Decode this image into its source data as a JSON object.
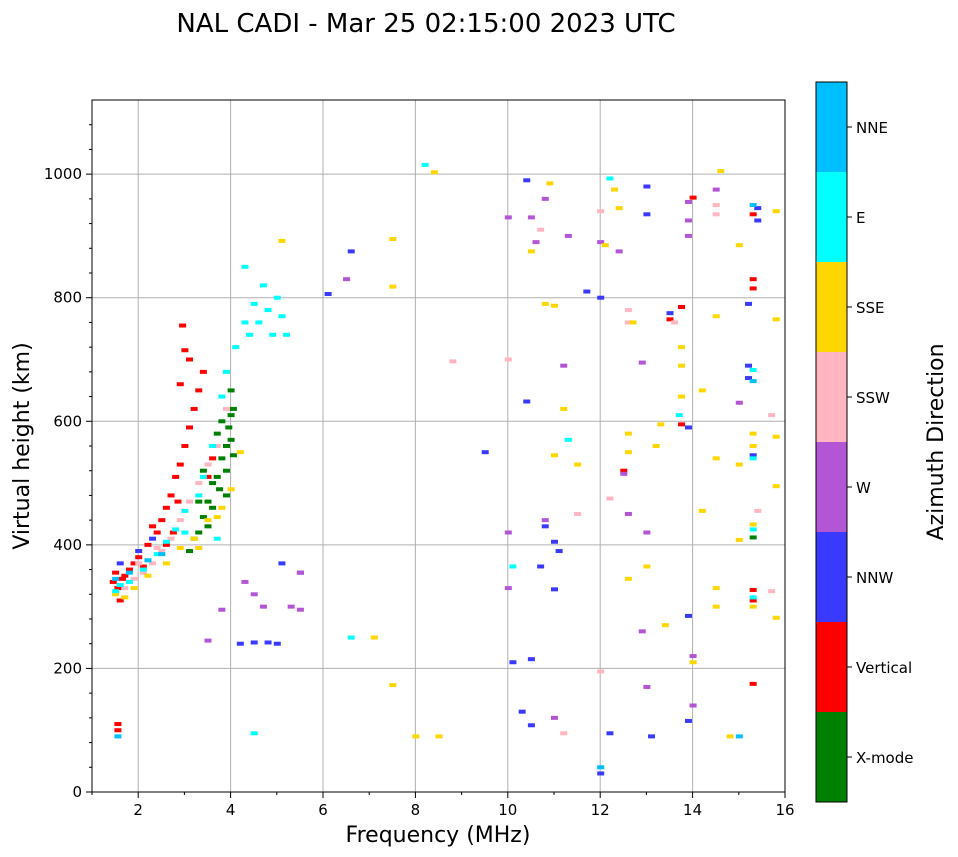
{
  "chart_data": {
    "type": "scatter",
    "title": "NAL CADI - Mar 25 02:15:00 2023 UTC",
    "xlabel": "Frequency (MHz)",
    "ylabel": "Virtual height (km)",
    "xlim": [
      1,
      16
    ],
    "ylim": [
      0,
      1120
    ],
    "x_ticks": [
      2,
      4,
      6,
      8,
      10,
      12,
      14,
      16
    ],
    "y_ticks": [
      0,
      200,
      400,
      600,
      800,
      1000
    ],
    "grid": true,
    "colorbar": {
      "label": "Azimuth Direction",
      "categories": [
        {
          "name": "X-mode",
          "color": "#008000"
        },
        {
          "name": "Vertical",
          "color": "#ff0000"
        },
        {
          "name": "NNW",
          "color": "#3a3aff"
        },
        {
          "name": "W",
          "color": "#b256d6"
        },
        {
          "name": "SSW",
          "color": "#ffb6c1"
        },
        {
          "name": "SSE",
          "color": "#ffd700"
        },
        {
          "name": "E",
          "color": "#00ffff"
        },
        {
          "name": "NNE",
          "color": "#00bfff"
        }
      ]
    },
    "series": [
      {
        "name": "X-mode",
        "points": [
          [
            3.3,
            420
          ],
          [
            3.4,
            445
          ],
          [
            3.5,
            470
          ],
          [
            3.6,
            500
          ],
          [
            3.5,
            430
          ],
          [
            3.7,
            510
          ],
          [
            3.8,
            540
          ],
          [
            3.9,
            560
          ],
          [
            3.95,
            590
          ],
          [
            4.0,
            610
          ],
          [
            4.0,
            650
          ],
          [
            4.05,
            620
          ],
          [
            3.9,
            480
          ],
          [
            3.6,
            460
          ],
          [
            3.2,
            410
          ],
          [
            3.1,
            390
          ],
          [
            3.4,
            520
          ],
          [
            3.7,
            580
          ],
          [
            3.8,
            600
          ],
          [
            4.0,
            570
          ],
          [
            3.3,
            470
          ],
          [
            3.9,
            520
          ],
          [
            4.05,
            545
          ],
          [
            3.75,
            490
          ],
          [
            15.3,
            412
          ]
        ]
      },
      {
        "name": "Vertical",
        "points": [
          [
            1.45,
            340
          ],
          [
            1.55,
            330
          ],
          [
            1.6,
            310
          ],
          [
            1.7,
            350
          ],
          [
            1.8,
            360
          ],
          [
            1.5,
            355
          ],
          [
            1.65,
            345
          ],
          [
            2.0,
            380
          ],
          [
            2.2,
            400
          ],
          [
            2.4,
            420
          ],
          [
            2.5,
            440
          ],
          [
            2.6,
            460
          ],
          [
            2.7,
            480
          ],
          [
            2.8,
            510
          ],
          [
            2.9,
            530
          ],
          [
            3.0,
            560
          ],
          [
            3.1,
            590
          ],
          [
            3.2,
            620
          ],
          [
            3.3,
            650
          ],
          [
            3.4,
            680
          ],
          [
            3.1,
            700
          ],
          [
            2.9,
            660
          ],
          [
            2.6,
            400
          ],
          [
            2.3,
            430
          ],
          [
            1.9,
            370
          ],
          [
            2.1,
            365
          ],
          [
            2.75,
            420
          ],
          [
            2.85,
            470
          ],
          [
            2.95,
            755
          ],
          [
            3.0,
            715
          ],
          [
            3.5,
            510
          ],
          [
            3.6,
            540
          ],
          [
            1.55,
            100
          ],
          [
            1.55,
            110
          ],
          [
            14.0,
            962
          ],
          [
            15.3,
            935
          ],
          [
            15.3,
            830
          ],
          [
            15.3,
            815
          ],
          [
            15.3,
            175
          ],
          [
            15.3,
            310
          ],
          [
            15.3,
            327
          ],
          [
            13.5,
            765
          ],
          [
            13.75,
            785
          ],
          [
            13.75,
            595
          ],
          [
            12.5,
            520
          ]
        ]
      },
      {
        "name": "NNW",
        "points": [
          [
            1.6,
            370
          ],
          [
            2.0,
            390
          ],
          [
            2.3,
            410
          ],
          [
            4.2,
            240
          ],
          [
            4.5,
            242
          ],
          [
            4.8,
            242
          ],
          [
            5.0,
            240
          ],
          [
            5.1,
            370
          ],
          [
            5.5,
            355
          ],
          [
            6.6,
            875
          ],
          [
            6.1,
            806
          ],
          [
            10.4,
            990
          ],
          [
            10.4,
            632
          ],
          [
            10.7,
            365
          ],
          [
            11.0,
            405
          ],
          [
            11.7,
            810
          ],
          [
            12.2,
            95
          ],
          [
            12.0,
            30
          ],
          [
            13.0,
            980
          ],
          [
            13.0,
            935
          ],
          [
            13.5,
            775
          ],
          [
            13.1,
            90
          ],
          [
            13.9,
            590
          ],
          [
            13.9,
            285
          ],
          [
            13.9,
            115
          ],
          [
            15.2,
            790
          ],
          [
            15.2,
            690
          ],
          [
            15.2,
            670
          ],
          [
            15.4,
            945
          ],
          [
            15.4,
            925
          ],
          [
            15.3,
            545
          ],
          [
            9.5,
            550
          ],
          [
            10.1,
            210
          ],
          [
            10.3,
            130
          ],
          [
            10.8,
            430
          ],
          [
            10.5,
            215
          ],
          [
            10.5,
            108
          ],
          [
            11.1,
            390
          ],
          [
            12.0,
            800
          ],
          [
            11.0,
            328
          ]
        ]
      },
      {
        "name": "W",
        "points": [
          [
            3.5,
            245
          ],
          [
            3.8,
            295
          ],
          [
            4.3,
            340
          ],
          [
            4.5,
            320
          ],
          [
            4.7,
            300
          ],
          [
            5.3,
            300
          ],
          [
            5.5,
            295
          ],
          [
            5.5,
            355
          ],
          [
            6.5,
            830
          ],
          [
            10.0,
            930
          ],
          [
            10.5,
            930
          ],
          [
            10.6,
            890
          ],
          [
            10.8,
            960
          ],
          [
            11.2,
            690
          ],
          [
            12.0,
            890
          ],
          [
            12.4,
            875
          ],
          [
            12.5,
            515
          ],
          [
            12.6,
            450
          ],
          [
            12.9,
            695
          ],
          [
            12.9,
            260
          ],
          [
            13.0,
            420
          ],
          [
            13.9,
            955
          ],
          [
            13.9,
            900
          ],
          [
            13.9,
            925
          ],
          [
            14.5,
            975
          ],
          [
            14.0,
            220
          ],
          [
            14.0,
            140
          ],
          [
            15.0,
            630
          ],
          [
            13.0,
            170
          ],
          [
            11.3,
            900
          ],
          [
            10.0,
            420
          ],
          [
            10.8,
            440
          ],
          [
            11.0,
            120
          ],
          [
            10.0,
            330
          ]
        ]
      },
      {
        "name": "SSW",
        "points": [
          [
            1.7,
            330
          ],
          [
            1.9,
            345
          ],
          [
            2.1,
            355
          ],
          [
            2.3,
            370
          ],
          [
            2.5,
            390
          ],
          [
            2.7,
            410
          ],
          [
            2.9,
            440
          ],
          [
            3.1,
            470
          ],
          [
            3.3,
            500
          ],
          [
            3.5,
            530
          ],
          [
            3.7,
            560
          ],
          [
            3.9,
            620
          ],
          [
            2.0,
            370
          ],
          [
            2.4,
            395
          ],
          [
            8.8,
            697
          ],
          [
            12.0,
            940
          ],
          [
            12.0,
            195
          ],
          [
            12.6,
            780
          ],
          [
            12.6,
            760
          ],
          [
            13.6,
            760
          ],
          [
            14.5,
            950
          ],
          [
            14.5,
            935
          ],
          [
            15.4,
            455
          ],
          [
            15.7,
            610
          ],
          [
            15.7,
            325
          ],
          [
            10.7,
            910
          ],
          [
            11.2,
            95
          ],
          [
            10.0,
            700
          ],
          [
            11.5,
            450
          ],
          [
            12.2,
            475
          ]
        ]
      },
      {
        "name": "SSE",
        "points": [
          [
            1.5,
            320
          ],
          [
            1.7,
            315
          ],
          [
            1.9,
            330
          ],
          [
            2.2,
            350
          ],
          [
            2.6,
            370
          ],
          [
            2.9,
            395
          ],
          [
            3.2,
            410
          ],
          [
            3.5,
            440
          ],
          [
            3.7,
            445
          ],
          [
            3.8,
            460
          ],
          [
            4.0,
            490
          ],
          [
            4.2,
            550
          ],
          [
            3.3,
            395
          ],
          [
            5.1,
            892
          ],
          [
            7.1,
            250
          ],
          [
            7.5,
            173
          ],
          [
            7.5,
            895
          ],
          [
            7.5,
            818
          ],
          [
            8.4,
            1003
          ],
          [
            8.0,
            90
          ],
          [
            8.5,
            90
          ],
          [
            10.5,
            875
          ],
          [
            10.8,
            790
          ],
          [
            11.0,
            787
          ],
          [
            10.9,
            985
          ],
          [
            11.0,
            545
          ],
          [
            11.5,
            530
          ],
          [
            11.2,
            620
          ],
          [
            12.1,
            885
          ],
          [
            12.3,
            975
          ],
          [
            12.4,
            945
          ],
          [
            12.6,
            580
          ],
          [
            12.6,
            550
          ],
          [
            12.6,
            345
          ],
          [
            12.7,
            760
          ],
          [
            13.0,
            365
          ],
          [
            13.2,
            560
          ],
          [
            13.3,
            595
          ],
          [
            13.4,
            270
          ],
          [
            13.75,
            640
          ],
          [
            13.75,
            690
          ],
          [
            13.75,
            720
          ],
          [
            14.2,
            650
          ],
          [
            14.2,
            455
          ],
          [
            14.5,
            540
          ],
          [
            14.5,
            300
          ],
          [
            14.5,
            330
          ],
          [
            14.0,
            210
          ],
          [
            14.5,
            770
          ],
          [
            14.8,
            90
          ],
          [
            15.0,
            885
          ],
          [
            15.0,
            530
          ],
          [
            15.3,
            580
          ],
          [
            15.3,
            560
          ],
          [
            15.3,
            433
          ],
          [
            15.3,
            300
          ],
          [
            15.8,
            940
          ],
          [
            15.8,
            765
          ],
          [
            15.8,
            575
          ],
          [
            15.8,
            495
          ],
          [
            15.8,
            282
          ],
          [
            14.6,
            1005
          ],
          [
            15.0,
            408
          ]
        ]
      },
      {
        "name": "E",
        "points": [
          [
            1.5,
            325
          ],
          [
            1.6,
            335
          ],
          [
            1.8,
            340
          ],
          [
            2.1,
            360
          ],
          [
            2.4,
            385
          ],
          [
            2.6,
            405
          ],
          [
            2.8,
            425
          ],
          [
            3.0,
            455
          ],
          [
            3.3,
            480
          ],
          [
            3.4,
            510
          ],
          [
            3.6,
            560
          ],
          [
            3.8,
            640
          ],
          [
            3.9,
            680
          ],
          [
            4.1,
            720
          ],
          [
            4.3,
            760
          ],
          [
            4.3,
            850
          ],
          [
            4.5,
            790
          ],
          [
            4.6,
            760
          ],
          [
            4.7,
            820
          ],
          [
            4.8,
            780
          ],
          [
            4.9,
            740
          ],
          [
            5.0,
            800
          ],
          [
            5.1,
            770
          ],
          [
            5.2,
            740
          ],
          [
            4.4,
            740
          ],
          [
            4.5,
            95
          ],
          [
            6.6,
            250
          ],
          [
            8.2,
            1015
          ],
          [
            10.1,
            365
          ],
          [
            11.3,
            570
          ],
          [
            12.2,
            993
          ],
          [
            15.3,
            540
          ],
          [
            15.3,
            425
          ],
          [
            15.3,
            683
          ],
          [
            15.3,
            315
          ],
          [
            13.7,
            610
          ],
          [
            3.0,
            420
          ],
          [
            3.7,
            410
          ]
        ]
      },
      {
        "name": "NNE",
        "points": [
          [
            1.5,
            345
          ],
          [
            1.55,
            90
          ],
          [
            1.8,
            355
          ],
          [
            2.2,
            375
          ],
          [
            2.5,
            385
          ],
          [
            15.0,
            90
          ],
          [
            15.3,
            665
          ],
          [
            15.3,
            950
          ],
          [
            12.0,
            40
          ]
        ]
      }
    ]
  }
}
